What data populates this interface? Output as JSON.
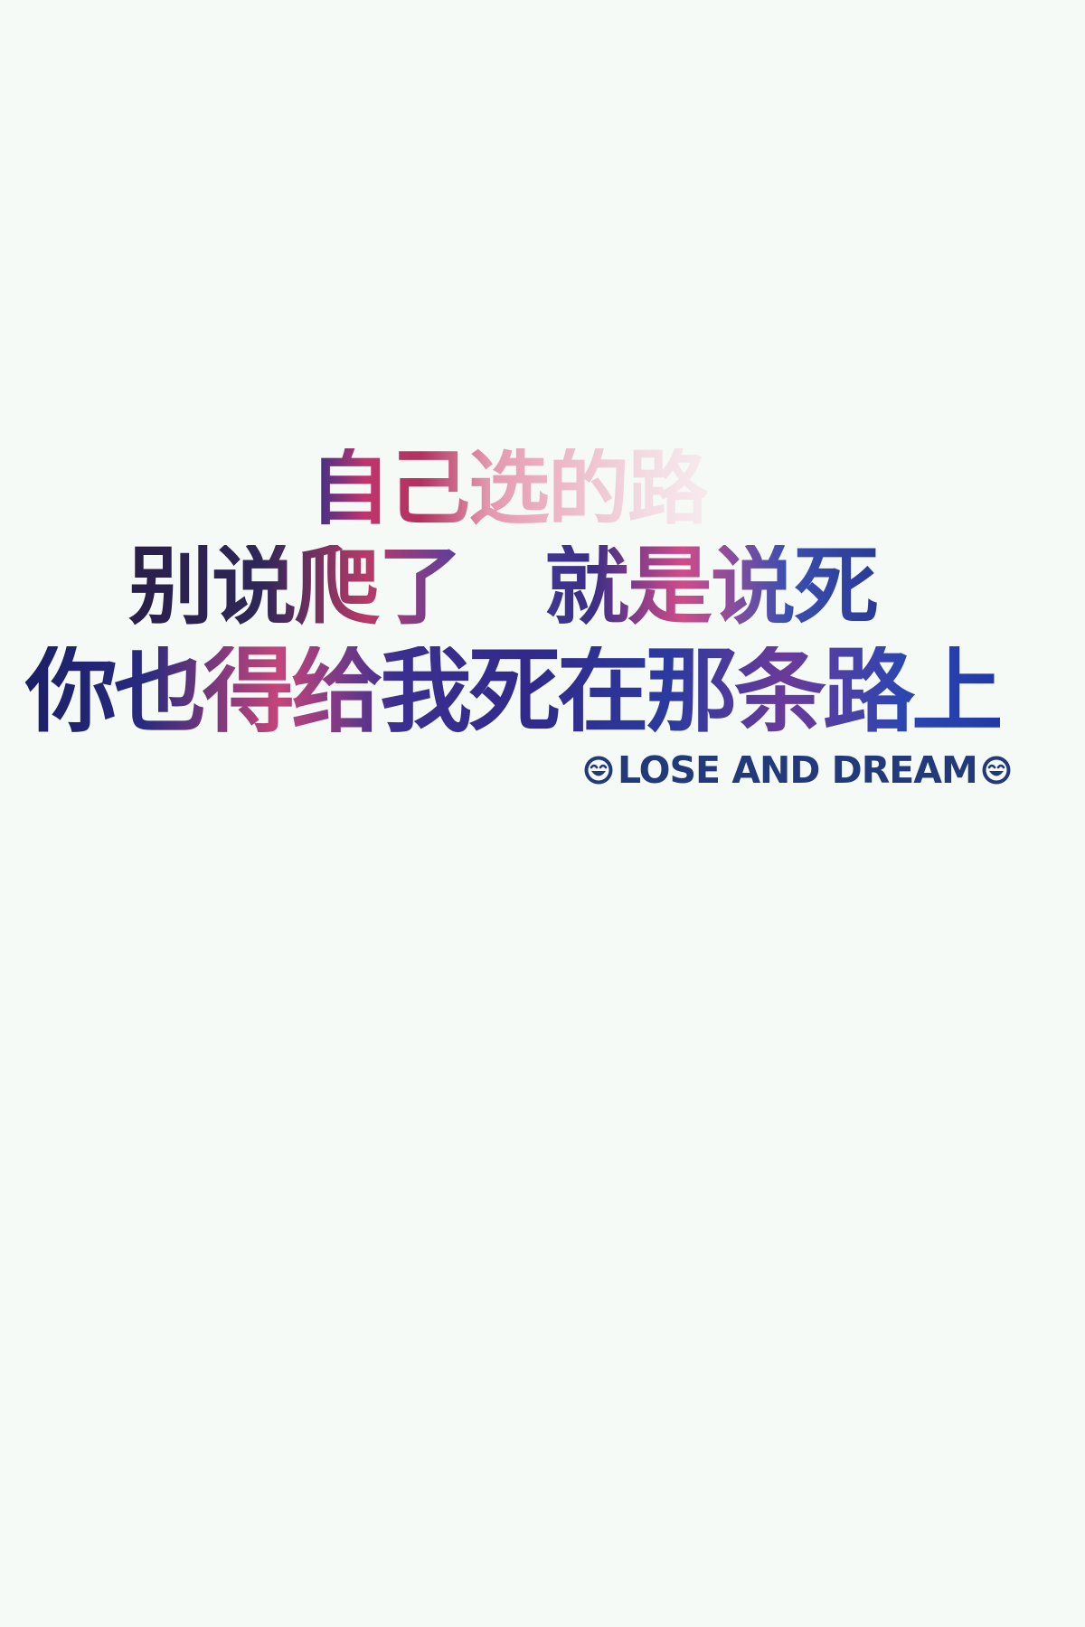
{
  "poster": {
    "lines": [
      "自己选的路",
      "别说爬了　就是说死",
      "你也得给我死在那条路上"
    ],
    "tagline": "LOSE AND DREAM",
    "icons": [
      "smiley-face-icon",
      "smiley-face-icon"
    ],
    "colors": {
      "background": "#f6faf7",
      "navy": "#223a7c",
      "pink": "#c0356c",
      "purple": "#3b2f90"
    }
  }
}
